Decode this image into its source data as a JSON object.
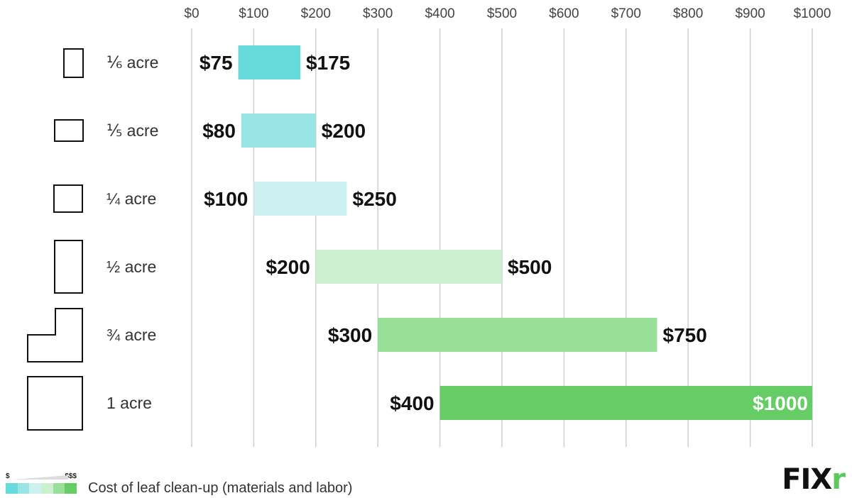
{
  "chart_data": {
    "type": "bar",
    "orientation": "horizontal-range",
    "xlim": [
      0,
      1000
    ],
    "x_ticks": [
      "$0",
      "$100",
      "$200",
      "$300",
      "$400",
      "$500",
      "$600",
      "$700",
      "$800",
      "$900",
      "$1000"
    ],
    "tick_values": [
      0,
      100,
      200,
      300,
      400,
      500,
      600,
      700,
      800,
      900,
      1000
    ],
    "grid": true,
    "categories": [
      "⅙ acre",
      "⅕ acre",
      "¼ acre",
      "½ acre",
      "¾ acre",
      "1 acre"
    ],
    "low": [
      75,
      80,
      100,
      200,
      300,
      400
    ],
    "high": [
      175,
      200,
      250,
      500,
      750,
      1000
    ],
    "low_labels": [
      "$75",
      "$80",
      "$100",
      "$200",
      "$300",
      "$400"
    ],
    "high_labels": [
      "$175",
      "$200",
      "$250",
      "$500",
      "$750",
      "$1000"
    ],
    "colors": [
      "#66dbdc",
      "#99e5e6",
      "#cdf0f1",
      "#ccefcf",
      "#98df98",
      "#66cd66"
    ],
    "row_icons": [
      "tall-rectangle-icon",
      "wide-rectangle-icon",
      "square-icon",
      "tall-narrow-rectangle-icon",
      "l-shape-icon",
      "large-square-icon"
    ]
  },
  "legend": {
    "low_mark": "$",
    "high_mark": "$$$",
    "caption": "Cost of leaf clean-up (materials and labor)",
    "swatches": [
      "#66dbdc",
      "#99e5e6",
      "#cdf0f1",
      "#ccefcf",
      "#98df98",
      "#66cd66"
    ]
  },
  "logo": {
    "text_main": "FIX",
    "text_accent": "r",
    "accent_color": "#5cc95f"
  }
}
